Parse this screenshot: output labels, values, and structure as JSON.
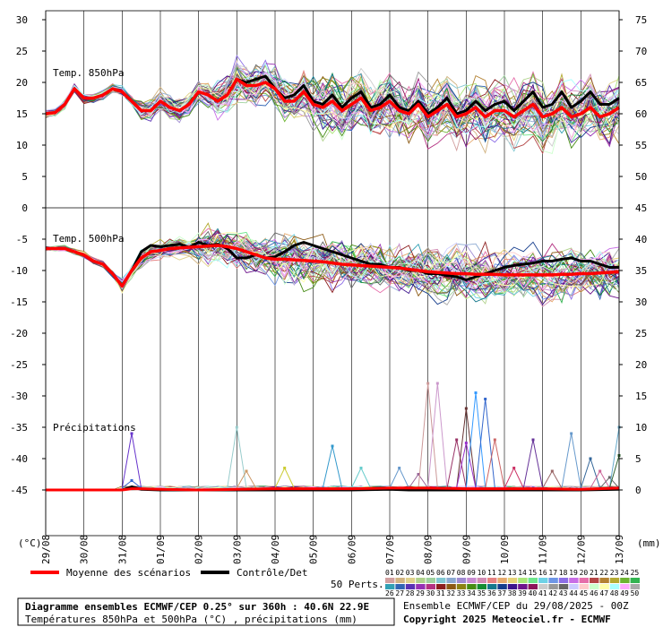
{
  "chart_data": {
    "type": "line",
    "dates": [
      "29/08",
      "30/08",
      "31/08",
      "01/09",
      "02/09",
      "03/09",
      "04/09",
      "05/09",
      "06/09",
      "07/09",
      "08/09",
      "09/09",
      "10/09",
      "11/09",
      "12/09",
      "13/09"
    ],
    "left_axis": {
      "unit_label": "(°C)",
      "ticks": [
        30,
        25,
        20,
        15,
        10,
        5,
        0,
        -5,
        -10,
        -15,
        -20,
        -25,
        -30,
        -35,
        -40,
        -45
      ]
    },
    "right_axis": {
      "unit_label": "(mm)",
      "ticks": [
        75,
        70,
        65,
        60,
        55,
        50,
        45,
        40,
        35,
        30,
        25,
        20,
        15,
        10,
        5,
        0
      ]
    },
    "panels": [
      {
        "label": "Temp. 850hPa",
        "mean_series": {
          "name": "Moyenne des scénarios",
          "color": "#ff0000",
          "x_days": [
            0,
            0.25,
            0.5,
            0.75,
            1,
            1.25,
            1.5,
            1.75,
            2,
            2.25,
            2.5,
            2.75,
            3,
            3.25,
            3.5,
            3.75,
            4,
            4.25,
            4.5,
            4.75,
            5,
            5.25,
            5.5,
            5.75,
            6,
            6.25,
            6.5,
            6.75,
            7,
            7.25,
            7.5,
            7.75,
            8,
            8.25,
            8.5,
            8.75,
            9,
            9.25,
            9.5,
            9.75,
            10,
            10.25,
            10.5,
            10.75,
            11,
            11.25,
            11.5,
            11.75,
            12,
            12.25,
            12.5,
            12.75,
            13,
            13.25,
            13.5,
            13.75,
            14,
            14.25,
            14.5,
            14.75,
            15
          ],
          "values": [
            15,
            15.2,
            16.5,
            19,
            17.5,
            17.5,
            18,
            19,
            18.5,
            17,
            15.5,
            15.5,
            17,
            16,
            15.5,
            16.5,
            18.5,
            18,
            17,
            18,
            20.5,
            19.5,
            19.5,
            20,
            19,
            17,
            17,
            18.5,
            16.5,
            16,
            17,
            15.5,
            16.5,
            17.5,
            15.5,
            16,
            17,
            15.5,
            15,
            16.5,
            14.5,
            15.5,
            16.5,
            14.5,
            15,
            16,
            14.5,
            15.5,
            15.5,
            14.5,
            15.5,
            16.5,
            14.5,
            15,
            16,
            14.5,
            15,
            16,
            14.5,
            15,
            16
          ]
        },
        "control_series": {
          "name": "Contrôle/Det",
          "color": "#000000",
          "x_days": [
            0,
            0.25,
            0.5,
            0.75,
            1,
            1.25,
            1.5,
            1.75,
            2,
            2.25,
            2.5,
            2.75,
            3,
            3.25,
            3.5,
            3.75,
            4,
            4.25,
            4.5,
            4.75,
            5,
            5.25,
            5.5,
            5.75,
            6,
            6.25,
            6.5,
            6.75,
            7,
            7.25,
            7.5,
            7.75,
            8,
            8.25,
            8.5,
            8.75,
            9,
            9.25,
            9.5,
            9.75,
            10,
            10.25,
            10.5,
            10.75,
            11,
            11.25,
            11.5,
            11.75,
            12,
            12.25,
            12.5,
            12.75,
            13,
            13.25,
            13.5,
            13.75,
            14,
            14.25,
            14.5,
            14.75,
            15
          ],
          "values": [
            15,
            15.2,
            16.5,
            19,
            17.5,
            17.5,
            18,
            19,
            18.5,
            17,
            15.5,
            15.5,
            17,
            16,
            15.5,
            16.5,
            18.5,
            18,
            17,
            18,
            20.5,
            20,
            20.5,
            21,
            19,
            17.5,
            18,
            19.5,
            17,
            16.5,
            18,
            16,
            17.5,
            18.5,
            16,
            16.5,
            18,
            16,
            15.5,
            17,
            15,
            16,
            17.5,
            15,
            15.5,
            17,
            15.5,
            16.5,
            17,
            15.5,
            17,
            18.5,
            16,
            16.5,
            18.5,
            16,
            17,
            18.5,
            16.5,
            16.5,
            17.5
          ]
        }
      },
      {
        "label": "Temp. 500hPa",
        "mean_series": {
          "name": "Moyenne des scénarios",
          "color": "#ff0000",
          "x_days": [
            0,
            0.25,
            0.5,
            0.75,
            1,
            1.25,
            1.5,
            1.75,
            2,
            2.25,
            2.5,
            2.75,
            3,
            3.25,
            3.5,
            3.75,
            4,
            4.25,
            4.5,
            4.75,
            5,
            5.25,
            5.5,
            5.75,
            6,
            6.25,
            6.5,
            6.75,
            7,
            7.25,
            7.5,
            7.75,
            8,
            8.25,
            8.5,
            8.75,
            9,
            9.25,
            9.5,
            9.75,
            10,
            10.25,
            10.5,
            10.75,
            11,
            11.25,
            11.5,
            11.75,
            12,
            12.25,
            12.5,
            12.75,
            13,
            13.25,
            13.5,
            13.75,
            14,
            14.25,
            14.5,
            14.75,
            15
          ],
          "values": [
            -6.5,
            -6.5,
            -6.5,
            -7,
            -7.5,
            -8.5,
            -9,
            -10.5,
            -12.5,
            -10,
            -8,
            -7,
            -6.8,
            -6.5,
            -6.4,
            -6.3,
            -6.2,
            -6.1,
            -6,
            -6.2,
            -6.5,
            -7,
            -7.5,
            -8,
            -8.2,
            -8.2,
            -8.3,
            -8.4,
            -8.5,
            -8.6,
            -8.8,
            -9,
            -9.1,
            -9.2,
            -9.3,
            -9.4,
            -9.5,
            -9.6,
            -9.8,
            -10,
            -10.2,
            -10.3,
            -10.4,
            -10.5,
            -10.5,
            -10.6,
            -10.6,
            -10.6,
            -10.7,
            -10.7,
            -10.7,
            -10.7,
            -10.7,
            -10.7,
            -10.6,
            -10.6,
            -10.5,
            -10.5,
            -10.4,
            -10.3,
            -10.2
          ]
        },
        "control_series": {
          "name": "Contrôle/Det",
          "color": "#000000",
          "x_days": [
            0,
            0.25,
            0.5,
            0.75,
            1,
            1.25,
            1.5,
            1.75,
            2,
            2.25,
            2.5,
            2.75,
            3,
            3.25,
            3.5,
            3.75,
            4,
            4.25,
            4.5,
            4.75,
            5,
            5.25,
            5.5,
            5.75,
            6,
            6.25,
            6.5,
            6.75,
            7,
            7.25,
            7.5,
            7.75,
            8,
            8.25,
            8.5,
            8.75,
            9,
            9.25,
            9.5,
            9.75,
            10,
            10.25,
            10.5,
            10.75,
            11,
            11.25,
            11.5,
            11.75,
            12,
            12.25,
            12.5,
            12.75,
            13,
            13.25,
            13.5,
            13.75,
            14,
            14.25,
            14.5,
            14.75,
            15
          ],
          "values": [
            -6.5,
            -6.5,
            -6.5,
            -7,
            -7.5,
            -8.5,
            -9,
            -10.5,
            -12.5,
            -10,
            -7,
            -6,
            -6.2,
            -6,
            -5.8,
            -6.3,
            -5.5,
            -6,
            -5.8,
            -6.5,
            -8,
            -8,
            -7.5,
            -8,
            -7.8,
            -7,
            -6,
            -5.5,
            -6,
            -6.5,
            -7,
            -7.5,
            -8,
            -8.5,
            -9,
            -9,
            -9.5,
            -9.5,
            -10,
            -10,
            -10.5,
            -10.5,
            -10.8,
            -11,
            -11.5,
            -11,
            -10.5,
            -10,
            -9.5,
            -9.2,
            -9,
            -8.8,
            -8.5,
            -8.5,
            -8.2,
            -8,
            -8.5,
            -8.5,
            -9,
            -9.5,
            -9.5
          ]
        }
      },
      {
        "label": "Précipitations",
        "axis": "right",
        "mean_series": {
          "name": "Moyenne des scénarios",
          "color": "#ff0000",
          "x_days": [
            0,
            1,
            2,
            2.25,
            2.5,
            3,
            4,
            5,
            6,
            7,
            8,
            9,
            9.5,
            10,
            11,
            12,
            13,
            14,
            15
          ],
          "values": [
            0,
            0,
            0,
            0.2,
            0.2,
            0.1,
            0,
            0.1,
            0.2,
            0.2,
            0.2,
            0.3,
            0.3,
            0.3,
            0.2,
            0.2,
            0.2,
            0.1,
            0.3
          ]
        },
        "control_series": {
          "name": "Contrôle/Det",
          "color": "#000000",
          "x_days": [
            0,
            1,
            2,
            2.25,
            2.5,
            3,
            4,
            5,
            6,
            7,
            8,
            9,
            9.5,
            10,
            11,
            12,
            13,
            14,
            15
          ],
          "values": [
            0,
            0,
            0,
            0.5,
            0.1,
            0,
            0,
            0,
            0,
            0,
            0,
            0.1,
            0,
            0,
            0,
            0,
            0,
            0,
            0.1
          ]
        },
        "member_peaks": [
          {
            "day": 2.25,
            "value": 9,
            "color": "#6633cc"
          },
          {
            "day": 2.25,
            "value": 1.5,
            "color": "#3366cc"
          },
          {
            "day": 5.0,
            "value": 10,
            "color": "#99cccc"
          },
          {
            "day": 5.25,
            "value": 3,
            "color": "#cc9966"
          },
          {
            "day": 6.25,
            "value": 3.5,
            "color": "#cccc33"
          },
          {
            "day": 7.5,
            "value": 7,
            "color": "#3399cc"
          },
          {
            "day": 8.25,
            "value": 3.5,
            "color": "#66cccc"
          },
          {
            "day": 9.25,
            "value": 3.5,
            "color": "#6699cc"
          },
          {
            "day": 9.75,
            "value": 2.5,
            "color": "#996699"
          },
          {
            "day": 10.0,
            "value": 17,
            "color": "#cc9999"
          },
          {
            "day": 10.25,
            "value": 17,
            "color": "#cc99cc"
          },
          {
            "day": 10.75,
            "value": 8,
            "color": "#993366"
          },
          {
            "day": 11.0,
            "value": 13,
            "color": "#663333"
          },
          {
            "day": 11.0,
            "value": 7.5,
            "color": "#9933cc"
          },
          {
            "day": 11.25,
            "value": 15.5,
            "color": "#3399ff"
          },
          {
            "day": 11.5,
            "value": 14.5,
            "color": "#3366cc"
          },
          {
            "day": 11.75,
            "value": 8,
            "color": "#cc6666"
          },
          {
            "day": 12.25,
            "value": 3.5,
            "color": "#cc3366"
          },
          {
            "day": 12.75,
            "value": 8,
            "color": "#663399"
          },
          {
            "day": 13.25,
            "value": 3,
            "color": "#996666"
          },
          {
            "day": 13.75,
            "value": 9,
            "color": "#6699cc"
          },
          {
            "day": 14.25,
            "value": 5,
            "color": "#336699"
          },
          {
            "day": 14.5,
            "value": 3,
            "color": "#cc6699"
          },
          {
            "day": 14.75,
            "value": 2,
            "color": "#666666"
          },
          {
            "day": 15.0,
            "value": 10,
            "color": "#66aacc"
          },
          {
            "day": 15.0,
            "value": 5.5,
            "color": "#336633"
          }
        ]
      }
    ],
    "ensemble_member_colors": [
      "#d2a0a0",
      "#d2b482",
      "#e0d28c",
      "#b0d28c",
      "#9fd29f",
      "#82c8d2",
      "#8caad2",
      "#a08cd2",
      "#c88cd2",
      "#d28cb4",
      "#e68282",
      "#e6aa6e",
      "#e6d278",
      "#aae678",
      "#6ee68c",
      "#6ed2e6",
      "#6e96e6",
      "#8c6ee6",
      "#c86ee6",
      "#e66eaa",
      "#b44646",
      "#b48232",
      "#b4aa32",
      "#6eb432",
      "#32b450",
      "#32a0b4",
      "#3264b4",
      "#5a32b4",
      "#9632b4",
      "#b43282",
      "#8c1e1e",
      "#8c5a14",
      "#8c8214",
      "#468c14",
      "#148c32",
      "#14788c",
      "#143c8c",
      "#3c148c",
      "#6e148c",
      "#8c145a",
      "#cccccc",
      "#999999",
      "#666666",
      "#ccccff",
      "#ffcccc",
      "#ccffcc",
      "#ffffaa",
      "#aaffff",
      "#ffaaff",
      "#aaaaaa"
    ]
  },
  "legend": {
    "mean_label": "Moyenne des scénarios",
    "control_label": "Contrôle/Det",
    "perts_label": "50 Perts.",
    "perts_row1": [
      "01",
      "02",
      "03",
      "04",
      "05",
      "06",
      "07",
      "08",
      "09",
      "10",
      "11",
      "12",
      "13",
      "14",
      "15",
      "16",
      "17",
      "18",
      "19",
      "20",
      "21",
      "22",
      "23",
      "24",
      "25"
    ],
    "perts_row2": [
      "26",
      "27",
      "28",
      "29",
      "30",
      "31",
      "32",
      "33",
      "34",
      "35",
      "36",
      "37",
      "38",
      "39",
      "40",
      "41",
      "42",
      "43",
      "44",
      "45",
      "46",
      "47",
      "48",
      "49",
      "50"
    ]
  },
  "info": {
    "title": "Diagramme ensembles ECMWF/CEP 0.25° sur 360h : 40.6N 22.9E",
    "subtitle": "Températures 850hPa et 500hPa (°C) , précipitations (mm)",
    "run": "Ensemble ECMWF/CEP du 29/08/2025 - 00Z",
    "copyright": "Copyright 2025 Meteociel.fr - ECMWF"
  }
}
